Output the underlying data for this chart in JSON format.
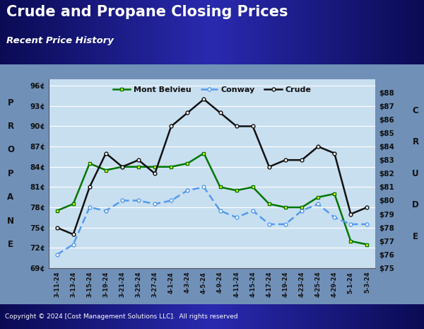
{
  "title": "Crude and Propane Closing Prices",
  "subtitle": "Recent Price History",
  "copyright": "Copyright © 2024 [Cost Management Solutions LLC].  All rights reserved",
  "ylabel_left": "PROPANE",
  "ylabel_right": "C\nR\nU\nD\nE",
  "header_colors": [
    "#0d0d5e",
    "#2a2a9a",
    "#0d0d5e"
  ],
  "footer_colors": [
    "#0d0d5e",
    "#2a2a9a",
    "#0d0d5e"
  ],
  "plot_bg": "#c8dff0",
  "outer_bg": "#7090b8",
  "x_labels": [
    "3-11-24",
    "3-13-24",
    "3-15-24",
    "3-19-24",
    "3-21-24",
    "3-25-24",
    "3-27-24",
    "4-1-24",
    "4-3-24",
    "4-5-24",
    "4-9-24",
    "4-11-24",
    "4-15-24",
    "4-17-24",
    "4-19-24",
    "4-23-24",
    "4-25-24",
    "4-29-24",
    "5-1-24",
    "5-3-24"
  ],
  "mont_belvieu": [
    77.5,
    78.5,
    84.5,
    83.5,
    84.0,
    84.0,
    84.0,
    84.0,
    84.5,
    86.0,
    81.0,
    80.5,
    81.0,
    78.5,
    78.0,
    78.0,
    79.5,
    80.0,
    73.0,
    72.5
  ],
  "conway": [
    71.0,
    72.5,
    78.0,
    77.5,
    79.0,
    79.0,
    78.5,
    79.0,
    80.5,
    81.0,
    77.5,
    76.5,
    77.5,
    75.5,
    75.5,
    77.5,
    78.5,
    76.5,
    75.5,
    75.5
  ],
  "crude": [
    78.0,
    77.5,
    81.0,
    83.5,
    82.5,
    83.0,
    82.0,
    85.5,
    86.5,
    87.5,
    86.5,
    85.5,
    85.5,
    82.5,
    83.0,
    83.0,
    84.0,
    83.5,
    79.0,
    79.5
  ],
  "mont_belvieu_color": "#007700",
  "conway_color": "#5599ee",
  "crude_color": "#111111",
  "ylim_left": [
    69,
    97
  ],
  "ylim_right": [
    75,
    89
  ],
  "left_ticks": [
    69,
    72,
    75,
    78,
    81,
    84,
    87,
    90,
    93,
    96
  ],
  "right_ticks": [
    75,
    76,
    77,
    78,
    79,
    80,
    81,
    82,
    83,
    84,
    85,
    86,
    87,
    88
  ],
  "left_tick_labels": [
    "69¢",
    "72¢",
    "75¢",
    "78¢",
    "81¢",
    "84¢",
    "87¢",
    "90¢",
    "93¢",
    "96¢"
  ],
  "right_tick_labels": [
    "$75",
    "$76",
    "$77",
    "$78",
    "$79",
    "$80",
    "$81",
    "$82",
    "$83",
    "$84",
    "$85",
    "$86",
    "$87",
    "$88"
  ],
  "legend_labels": [
    "Mont Belvieu",
    "Conway",
    "Crude"
  ],
  "grid_color": "#aaccee",
  "grid_linewidth": 0.8
}
